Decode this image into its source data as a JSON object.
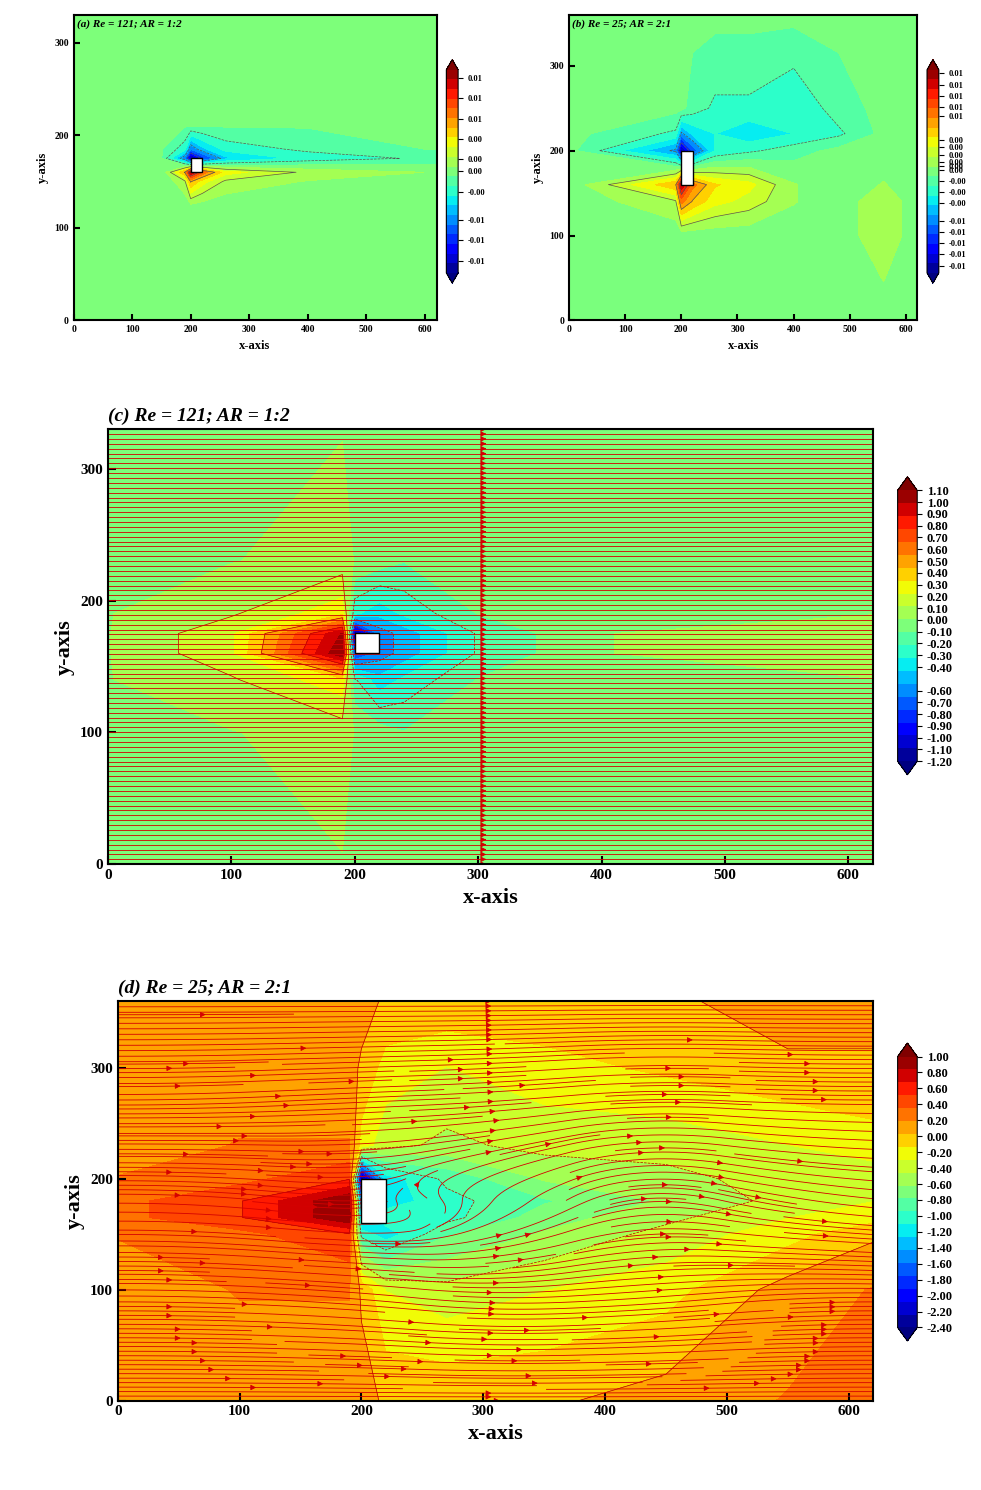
{
  "chart_data": [
    {
      "type": "contour",
      "title": "(a) Re = 121; AR = 1:2",
      "x_label": "x-axis",
      "y_label": "y-axis",
      "xlim": [
        0,
        620
      ],
      "ylim": [
        0,
        330
      ],
      "xticks": [
        0,
        100,
        200,
        300,
        400,
        500,
        600
      ],
      "yticks": [
        0,
        100,
        200,
        300
      ],
      "body": {
        "x": [
          200,
          220
        ],
        "y": [
          160,
          175
        ]
      },
      "field": {
        "x": [
          0,
          150,
          190,
          200,
          220,
          260,
          400,
          620
        ],
        "y": [
          0,
          120,
          150,
          160,
          175,
          185,
          210,
          330
        ],
        "values": [
          [
            0,
            0,
            0,
            0,
            0,
            0,
            0,
            0
          ],
          [
            0,
            0,
            0,
            0,
            0,
            0,
            0,
            0
          ],
          [
            0,
            0,
            0.002,
            0.006,
            0.004,
            0.002,
            0.001,
            0
          ],
          [
            0,
            0,
            0.006,
            0.012,
            0.008,
            0.004,
            0.002,
            0.001
          ],
          [
            0,
            0,
            -0.006,
            -0.012,
            -0.008,
            -0.004,
            -0.002,
            -0.001
          ],
          [
            0,
            0,
            -0.002,
            -0.006,
            -0.004,
            -0.002,
            -0.001,
            0
          ],
          [
            0,
            0,
            0,
            0,
            0,
            0,
            0,
            0
          ],
          [
            0,
            0,
            0,
            0,
            0,
            0,
            0,
            0
          ]
        ]
      },
      "colorbar": {
        "range": [
          -0.012,
          0.013
        ],
        "ticks": [
          {
            "value": 0.012,
            "label": "0.01"
          },
          {
            "value": 0.0095,
            "label": "0.01"
          },
          {
            "value": 0.007,
            "label": "0.01"
          },
          {
            "value": 0.0045,
            "label": "0.00"
          },
          {
            "value": 0.002,
            "label": "0.00"
          },
          {
            "value": 0.0005,
            "label": "0.00"
          },
          {
            "value": -0.002,
            "label": "-0.00"
          },
          {
            "value": -0.0055,
            "label": "-0.01"
          },
          {
            "value": -0.008,
            "label": "-0.01"
          },
          {
            "value": -0.0105,
            "label": "-0.01"
          }
        ]
      }
    },
    {
      "type": "contour",
      "title": "(b) Re = 25; AR = 2:1",
      "x_label": "x-axis",
      "y_label": "y-axis",
      "xlim": [
        0,
        620
      ],
      "ylim": [
        0,
        360
      ],
      "xticks": [
        0,
        100,
        200,
        300,
        400,
        500,
        600
      ],
      "yticks": [
        0,
        100,
        200,
        300
      ],
      "body": {
        "x": [
          200,
          220
        ],
        "y": [
          160,
          200
        ]
      },
      "field": {
        "x": [
          0,
          190,
          200,
          220,
          260,
          320,
          400,
          480,
          560,
          620
        ],
        "y": [
          0,
          100,
          140,
          160,
          200,
          220,
          250,
          360
        ],
        "values": [
          [
            0,
            0,
            0,
            0,
            0,
            0,
            0,
            0,
            0,
            0
          ],
          [
            0,
            0,
            0,
            0,
            0,
            0,
            0,
            0,
            0.002,
            0
          ],
          [
            0,
            0.002,
            0.008,
            0.006,
            0.004,
            0.003,
            0.001,
            0,
            0.002,
            0
          ],
          [
            0,
            0.006,
            0.013,
            0.008,
            0.005,
            0.004,
            0.001,
            0,
            0.001,
            0
          ],
          [
            0,
            -0.006,
            -0.013,
            -0.008,
            -0.003,
            -0.002,
            -0.001,
            0,
            0,
            0
          ],
          [
            0,
            -0.002,
            -0.006,
            -0.004,
            -0.003,
            -0.004,
            -0.003,
            -0.002,
            0,
            0
          ],
          [
            0,
            0,
            0,
            -0.001,
            -0.002,
            -0.002,
            -0.003,
            -0.001,
            0,
            0
          ],
          [
            0,
            0,
            0,
            0,
            0,
            0,
            0,
            0,
            0,
            0
          ]
        ]
      },
      "colorbar": {
        "range": [
          -0.0135,
          0.014
        ],
        "ticks": [
          {
            "value": 0.0135,
            "label": "0.01"
          },
          {
            "value": 0.012,
            "label": "0.01"
          },
          {
            "value": 0.0105,
            "label": "0.01"
          },
          {
            "value": 0.009,
            "label": "0.01"
          },
          {
            "value": 0.0078,
            "label": "0.01"
          },
          {
            "value": 0.0045,
            "label": "0.00"
          },
          {
            "value": 0.0035,
            "label": "0.00"
          },
          {
            "value": 0.0025,
            "label": "0.00"
          },
          {
            "value": 0.0015,
            "label": "0.00"
          },
          {
            "value": 0.001,
            "label": "0.00"
          },
          {
            "value": 0.0004,
            "label": "0.00"
          },
          {
            "value": -0.001,
            "label": "-0.00"
          },
          {
            "value": -0.0025,
            "label": "-0.00"
          },
          {
            "value": -0.004,
            "label": "-0.00"
          },
          {
            "value": -0.0065,
            "label": "-0.01"
          },
          {
            "value": -0.008,
            "label": "-0.01"
          },
          {
            "value": -0.0095,
            "label": "-0.01"
          },
          {
            "value": -0.011,
            "label": "-0.01"
          },
          {
            "value": -0.0125,
            "label": "-0.01"
          }
        ]
      }
    },
    {
      "type": "contour",
      "title": "(c) Re = 121; AR = 1:2",
      "x_label": "x-axis",
      "y_label": "y-axis",
      "xlim": [
        0,
        620
      ],
      "ylim": [
        0,
        330
      ],
      "xticks": [
        0,
        100,
        200,
        300,
        400,
        500,
        600
      ],
      "yticks": [
        0,
        100,
        200,
        300
      ],
      "body": {
        "x": [
          200,
          220
        ],
        "y": [
          160,
          175
        ]
      },
      "field": {
        "x": [
          0,
          100,
          190,
          200,
          220,
          240,
          300,
          400,
          620
        ],
        "y": [
          0,
          100,
          140,
          160,
          175,
          190,
          230,
          330
        ],
        "values": [
          [
            0,
            0,
            0,
            0,
            0,
            0,
            0,
            0,
            0
          ],
          [
            0,
            0,
            0.05,
            0,
            -0.05,
            -0.1,
            -0.05,
            0,
            0
          ],
          [
            0,
            0.1,
            0.3,
            -0.2,
            -0.4,
            -0.3,
            -0.1,
            0,
            0
          ],
          [
            0,
            0.2,
            1.1,
            -0.8,
            -0.6,
            -0.5,
            -0.2,
            0,
            0.1
          ],
          [
            0,
            0.2,
            1.0,
            -1.2,
            -0.6,
            -0.5,
            -0.2,
            0,
            0.1
          ],
          [
            0,
            0.1,
            0.3,
            -0.3,
            -0.4,
            -0.3,
            -0.1,
            0,
            0
          ],
          [
            0,
            0,
            0.05,
            0,
            -0.05,
            -0.1,
            -0.05,
            0,
            0
          ],
          [
            0,
            0,
            0,
            0,
            0,
            0,
            0,
            0,
            0
          ]
        ]
      },
      "streamlines": {
        "color": "#d40000",
        "x": [
          0,
          155,
          310,
          465,
          620
        ],
        "y": [
          0,
          110,
          220,
          330
        ],
        "u": [
          [
            1,
            1,
            1,
            1,
            1
          ],
          [
            1,
            1,
            0.9,
            1,
            1
          ],
          [
            1,
            1,
            0.9,
            1,
            1
          ],
          [
            1,
            1,
            1,
            1,
            1
          ]
        ],
        "v": [
          [
            0,
            0,
            0,
            0,
            0
          ],
          [
            0,
            0,
            0,
            0,
            0
          ],
          [
            0,
            0,
            0,
            0,
            0
          ],
          [
            0,
            0,
            0,
            0,
            0
          ]
        ]
      },
      "colorbar": {
        "range": [
          -1.2,
          1.1
        ],
        "ticks": [
          {
            "value": 1.1,
            "label": "1.10"
          },
          {
            "value": 1.0,
            "label": "1.00"
          },
          {
            "value": 0.9,
            "label": "0.90"
          },
          {
            "value": 0.8,
            "label": "0.80"
          },
          {
            "value": 0.7,
            "label": "0.70"
          },
          {
            "value": 0.6,
            "label": "0.60"
          },
          {
            "value": 0.5,
            "label": "0.50"
          },
          {
            "value": 0.4,
            "label": "0.40"
          },
          {
            "value": 0.3,
            "label": "0.30"
          },
          {
            "value": 0.2,
            "label": "0.20"
          },
          {
            "value": 0.1,
            "label": "0.10"
          },
          {
            "value": 0,
            "label": "0.00"
          },
          {
            "value": -0.1,
            "label": "-0.10"
          },
          {
            "value": -0.2,
            "label": "-0.20"
          },
          {
            "value": -0.3,
            "label": "-0.30"
          },
          {
            "value": -0.4,
            "label": "-0.40"
          },
          {
            "value": -0.6,
            "label": "-0.60"
          },
          {
            "value": -0.7,
            "label": "-0.70"
          },
          {
            "value": -0.8,
            "label": "-0.80"
          },
          {
            "value": -0.9,
            "label": "-0.90"
          },
          {
            "value": -1.0,
            "label": "-1.00"
          },
          {
            "value": -1.1,
            "label": "-1.10"
          },
          {
            "value": -1.2,
            "label": "-1.20"
          }
        ]
      }
    },
    {
      "type": "contour",
      "title": "(d) Re = 25; AR = 2:1",
      "x_label": "x-axis",
      "y_label": "y-axis",
      "xlim": [
        0,
        620
      ],
      "ylim": [
        0,
        360
      ],
      "xticks": [
        0,
        100,
        200,
        300,
        400,
        500,
        600
      ],
      "yticks": [
        0,
        100,
        200,
        300
      ],
      "body": {
        "x": [
          200,
          220
        ],
        "y": [
          160,
          200
        ]
      },
      "field": {
        "x": [
          0,
          100,
          190,
          200,
          220,
          270,
          350,
          450,
          550,
          620
        ],
        "y": [
          0,
          100,
          150,
          165,
          180,
          200,
          230,
          300,
          360
        ],
        "values": [
          [
            0.1,
            0.1,
            0.1,
            0.1,
            0,
            0,
            0,
            0.1,
            0.2,
            0.2
          ],
          [
            0.1,
            0.2,
            0.2,
            0,
            -0.3,
            -0.4,
            -0.3,
            -0.2,
            0.1,
            0.2
          ],
          [
            0.2,
            0.3,
            0.5,
            -1.0,
            -1.2,
            -0.8,
            -0.6,
            -0.4,
            -0.2,
            0
          ],
          [
            0.3,
            0.5,
            1.0,
            -1.4,
            -1.0,
            -1.0,
            -0.7,
            -0.5,
            -0.3,
            -0.2
          ],
          [
            0.3,
            0.5,
            1.0,
            -1.6,
            -1.2,
            -1.0,
            -0.8,
            -0.6,
            -0.4,
            -0.3
          ],
          [
            0.2,
            0.3,
            0.5,
            -2.4,
            -1.2,
            -0.9,
            -0.6,
            -0.5,
            -0.4,
            -0.4
          ],
          [
            0.1,
            0.2,
            0.2,
            -0.2,
            -0.4,
            -0.5,
            -0.4,
            -0.4,
            -0.3,
            -0.2
          ],
          [
            0.1,
            0.1,
            0.1,
            0,
            -0.2,
            -0.3,
            -0.2,
            -0.1,
            0,
            0
          ],
          [
            0.1,
            0.1,
            0.1,
            0.1,
            0,
            0,
            0,
            0,
            0.1,
            0.1
          ]
        ]
      },
      "streamlines": {
        "color": "#d40000",
        "x": [
          0,
          124,
          248,
          372,
          496,
          620
        ],
        "y": [
          0,
          90,
          180,
          270,
          360
        ],
        "u": [
          [
            1,
            1,
            1,
            1,
            1,
            1
          ],
          [
            1,
            1,
            0.9,
            1,
            1,
            1
          ],
          [
            1,
            0.9,
            -0.2,
            0.5,
            0.8,
            0.9
          ],
          [
            1,
            1,
            1.1,
            1,
            1,
            1
          ],
          [
            1,
            1,
            1,
            1,
            1,
            1
          ]
        ],
        "v": [
          [
            0,
            0,
            0,
            0,
            0,
            0
          ],
          [
            0,
            -0.05,
            -0.1,
            0.05,
            0.1,
            0
          ],
          [
            0,
            -0.1,
            0.1,
            0.3,
            -0.2,
            -0.1
          ],
          [
            0,
            0.05,
            0.05,
            0.1,
            -0.05,
            0
          ],
          [
            0,
            0,
            0,
            0,
            0,
            0
          ]
        ]
      },
      "colorbar": {
        "range": [
          -2.4,
          1.0
        ],
        "ticks": [
          {
            "value": 1.0,
            "label": "1.00"
          },
          {
            "value": 0.8,
            "label": "0.80"
          },
          {
            "value": 0.6,
            "label": "0.60"
          },
          {
            "value": 0.4,
            "label": "0.40"
          },
          {
            "value": 0.2,
            "label": "0.20"
          },
          {
            "value": 0,
            "label": "0.00"
          },
          {
            "value": -0.2,
            "label": "-0.20"
          },
          {
            "value": -0.4,
            "label": "-0.40"
          },
          {
            "value": -0.6,
            "label": "-0.60"
          },
          {
            "value": -0.8,
            "label": "-0.80"
          },
          {
            "value": -1.0,
            "label": "-1.00"
          },
          {
            "value": -1.2,
            "label": "-1.20"
          },
          {
            "value": -1.4,
            "label": "-1.40"
          },
          {
            "value": -1.6,
            "label": "-1.60"
          },
          {
            "value": -1.8,
            "label": "-1.80"
          },
          {
            "value": -2.0,
            "label": "-2.00"
          },
          {
            "value": -2.2,
            "label": "-2.20"
          },
          {
            "value": -2.4,
            "label": "-2.40"
          }
        ]
      }
    }
  ]
}
